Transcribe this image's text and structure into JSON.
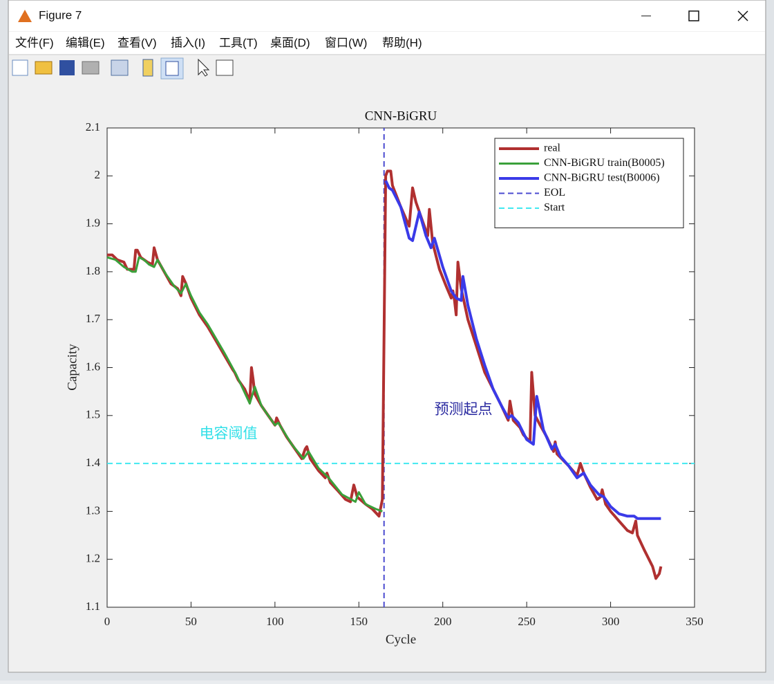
{
  "window": {
    "title": "Figure 7",
    "menu": [
      "文件(F)",
      "编辑(E)",
      "查看(V)",
      "插入(I)",
      "工具(T)",
      "桌面(D)",
      "窗口(W)",
      "帮助(H)"
    ]
  },
  "chart_data": {
    "type": "line",
    "title": "CNN-BiGRU",
    "x_label": "Cycle",
    "y_label": "Capacity",
    "xlim": [
      0,
      350
    ],
    "xticks": [
      0,
      50,
      100,
      150,
      200,
      250,
      300,
      350
    ],
    "ylim": [
      1.1,
      2.1
    ],
    "yticks": [
      1.1,
      1.2,
      1.3,
      1.4,
      1.5,
      1.6,
      1.7,
      1.8,
      1.9,
      2,
      2.1
    ],
    "legend": "upper right",
    "annotations": [
      {
        "text": "电容阈值",
        "x": 55,
        "y": 1.46,
        "color": "#33e0e8"
      },
      {
        "text": "预测起点",
        "x": 195,
        "y": 1.51,
        "color": "#2a2aa0"
      }
    ],
    "series": [
      {
        "name": "real",
        "color": "#b03030",
        "style": "solid",
        "width": 4,
        "x": [
          0,
          3,
          6,
          10,
          12,
          16,
          17,
          18,
          20,
          24,
          27,
          28,
          30,
          34,
          38,
          42,
          44,
          45,
          47,
          50,
          55,
          60,
          65,
          70,
          75,
          76,
          78,
          82,
          85,
          86,
          87,
          88,
          92,
          96,
          100,
          101,
          103,
          107,
          112,
          116,
          118,
          119,
          121,
          126,
          130,
          131,
          133,
          137,
          142,
          145,
          147,
          149,
          154,
          158,
          162,
          164,
          166,
          167,
          169,
          170,
          175,
          180,
          182,
          184,
          188,
          191,
          192,
          194,
          198,
          202,
          205,
          206,
          207,
          208,
          209,
          211,
          215,
          220,
          225,
          230,
          235,
          239,
          240,
          242,
          246,
          248,
          252,
          253,
          255,
          258,
          262,
          266,
          267,
          268,
          275,
          280,
          282,
          284,
          288,
          292,
          294,
          295,
          297,
          300,
          305,
          310,
          313,
          315,
          316,
          320,
          325,
          327,
          329,
          330
        ],
        "values": [
          1.835,
          1.835,
          1.825,
          1.82,
          1.805,
          1.805,
          1.845,
          1.845,
          1.83,
          1.82,
          1.815,
          1.85,
          1.825,
          1.8,
          1.775,
          1.765,
          1.75,
          1.79,
          1.775,
          1.745,
          1.71,
          1.685,
          1.655,
          1.625,
          1.595,
          1.59,
          1.575,
          1.555,
          1.53,
          1.6,
          1.575,
          1.545,
          1.52,
          1.5,
          1.48,
          1.495,
          1.48,
          1.455,
          1.43,
          1.41,
          1.43,
          1.435,
          1.41,
          1.385,
          1.37,
          1.38,
          1.36,
          1.345,
          1.325,
          1.32,
          1.355,
          1.33,
          1.315,
          1.305,
          1.29,
          1.325,
          2.0,
          2.01,
          2.01,
          1.98,
          1.935,
          1.895,
          1.975,
          1.945,
          1.905,
          1.875,
          1.93,
          1.86,
          1.805,
          1.77,
          1.745,
          1.76,
          1.74,
          1.71,
          1.82,
          1.765,
          1.7,
          1.645,
          1.59,
          1.555,
          1.52,
          1.49,
          1.53,
          1.49,
          1.475,
          1.46,
          1.445,
          1.59,
          1.5,
          1.48,
          1.455,
          1.425,
          1.445,
          1.42,
          1.395,
          1.375,
          1.4,
          1.38,
          1.35,
          1.325,
          1.33,
          1.345,
          1.315,
          1.3,
          1.28,
          1.26,
          1.255,
          1.28,
          1.25,
          1.22,
          1.185,
          1.16,
          1.17,
          1.185
        ]
      },
      {
        "name": "CNN-BiGRU train(B0005)",
        "color": "#3aa03a",
        "style": "solid",
        "width": 3,
        "x": [
          0,
          5,
          10,
          15,
          17,
          19,
          22,
          25,
          28,
          30,
          35,
          40,
          44,
          47,
          50,
          55,
          60,
          70,
          77,
          85,
          88,
          92,
          100,
          102,
          110,
          117,
          120,
          126,
          132,
          140,
          148,
          150,
          154,
          160,
          164
        ],
        "values": [
          1.83,
          1.825,
          1.81,
          1.8,
          1.8,
          1.83,
          1.825,
          1.815,
          1.81,
          1.825,
          1.795,
          1.77,
          1.755,
          1.775,
          1.75,
          1.715,
          1.69,
          1.63,
          1.585,
          1.525,
          1.56,
          1.52,
          1.48,
          1.485,
          1.44,
          1.41,
          1.425,
          1.39,
          1.37,
          1.335,
          1.32,
          1.34,
          1.315,
          1.305,
          1.3
        ]
      },
      {
        "name": "CNN-BiGRU test(B0006)",
        "color": "#3a3ae8",
        "style": "solid",
        "width": 4,
        "x": [
          166,
          168,
          170,
          175,
          180,
          182,
          186,
          190,
          193,
          195,
          200,
          205,
          208,
          211,
          212,
          215,
          220,
          225,
          230,
          235,
          239,
          241,
          245,
          250,
          254,
          256,
          260,
          265,
          267,
          270,
          275,
          280,
          284,
          288,
          293,
          296,
          300,
          305,
          310,
          314,
          316,
          320,
          325,
          330
        ],
        "values": [
          1.99,
          1.975,
          1.97,
          1.935,
          1.87,
          1.865,
          1.925,
          1.875,
          1.85,
          1.87,
          1.81,
          1.76,
          1.745,
          1.74,
          1.79,
          1.73,
          1.66,
          1.605,
          1.555,
          1.52,
          1.495,
          1.5,
          1.485,
          1.45,
          1.44,
          1.54,
          1.47,
          1.43,
          1.44,
          1.415,
          1.395,
          1.37,
          1.38,
          1.355,
          1.335,
          1.33,
          1.31,
          1.295,
          1.29,
          1.29,
          1.285,
          1.285,
          1.285,
          1.285
        ]
      },
      {
        "name": "EOL",
        "color": "#4a4ad0",
        "style": "dash",
        "width": 2,
        "x": [
          165,
          165
        ],
        "values": [
          1.1,
          2.1
        ]
      },
      {
        "name": "Start",
        "color": "#40e8f0",
        "style": "dash",
        "width": 2,
        "x": [
          0,
          350
        ],
        "values": [
          1.4,
          1.4
        ]
      }
    ]
  }
}
